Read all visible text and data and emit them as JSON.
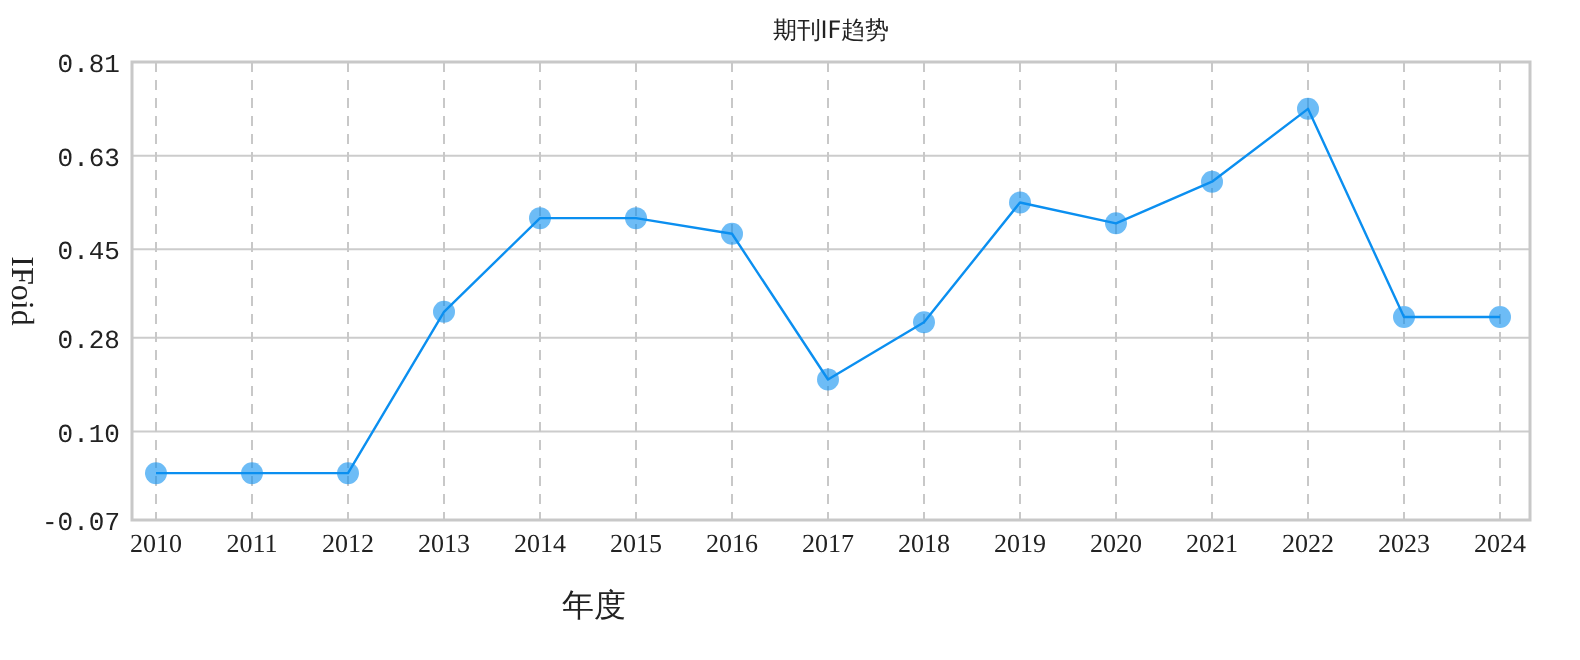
{
  "chart_data": {
    "type": "line",
    "title": "期刊IF趋势",
    "xlabel": "年度",
    "ylabel": "IFoid",
    "categories": [
      "2010",
      "2011",
      "2012",
      "2013",
      "2014",
      "2015",
      "2016",
      "2017",
      "2018",
      "2019",
      "2020",
      "2021",
      "2022",
      "2023",
      "2024"
    ],
    "series": [
      {
        "color": "#0b8ff0",
        "values": [
          0.02,
          0.02,
          0.02,
          0.33,
          0.51,
          0.51,
          0.48,
          0.2,
          0.31,
          0.54,
          0.5,
          0.58,
          0.72,
          0.32,
          0.32
        ]
      }
    ],
    "ylim": [
      -0.07,
      0.81
    ],
    "yticks": [
      {
        "value": -0.07,
        "label": "-0.07"
      },
      {
        "value": 0.1,
        "label": "0.10"
      },
      {
        "value": 0.28,
        "label": "0.28"
      },
      {
        "value": 0.45,
        "label": "0.45"
      },
      {
        "value": 0.63,
        "label": "0.63"
      },
      {
        "value": 0.81,
        "label": "0.81"
      }
    ],
    "grid": true,
    "marker": "circle",
    "line_style": "solid"
  }
}
